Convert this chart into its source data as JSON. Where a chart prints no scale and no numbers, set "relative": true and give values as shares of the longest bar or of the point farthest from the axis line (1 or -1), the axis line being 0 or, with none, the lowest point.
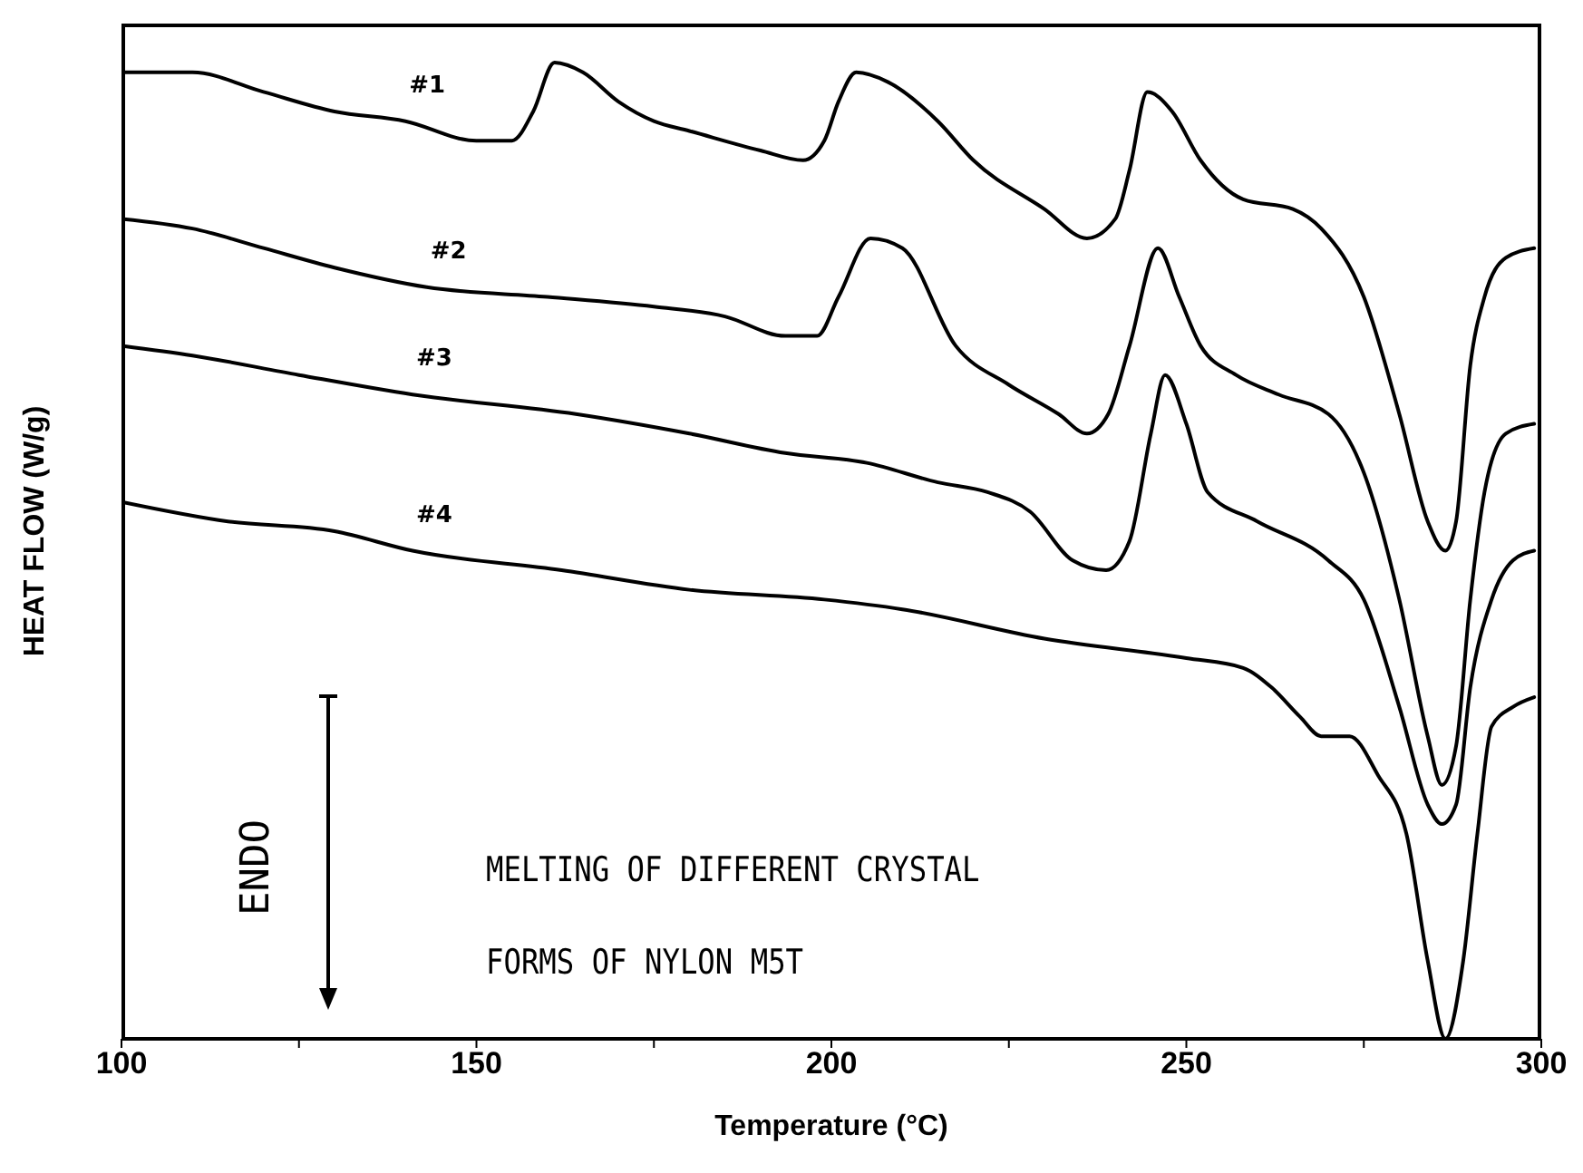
{
  "chart_data": {
    "type": "line",
    "xlabel": "Temperature (°C)",
    "ylabel": "HEAT FLOW (W/g)",
    "relative": true,
    "xlim": [
      100,
      300
    ],
    "xticks": [
      100,
      {
        "value": 125,
        "label": null
      },
      150,
      {
        "value": 175,
        "label": null
      },
      200,
      {
        "value": 225,
        "label": null
      },
      250,
      {
        "value": 275,
        "label": null
      },
      300
    ],
    "grid": false,
    "legend": false,
    "marker": "none",
    "line_style": "solid",
    "annotations": [
      "ENDO",
      "MELTING OF DIFFERENT CRYSTAL",
      "FORMS OF NYLON M5T"
    ],
    "series": [
      {
        "name": "#1",
        "color": "#000000",
        "x": [
          100,
          110,
          120,
          130,
          140,
          150,
          155,
          158,
          161,
          165,
          170,
          175,
          180,
          190,
          196,
          199,
          201,
          203.5,
          208,
          215,
          220,
          230,
          236,
          240,
          242,
          244.5,
          248,
          252,
          258,
          265,
          269,
          275,
          280,
          284,
          286.5,
          288,
          290,
          292,
          295,
          299
        ],
        "values": [
          0.99,
          0.99,
          0.97,
          0.95,
          0.94,
          0.92,
          0.92,
          0.95,
          1.0,
          0.99,
          0.96,
          0.94,
          0.93,
          0.91,
          0.9,
          0.92,
          0.96,
          0.99,
          0.98,
          0.94,
          0.9,
          0.85,
          0.82,
          0.84,
          0.89,
          0.97,
          0.95,
          0.9,
          0.86,
          0.85,
          0.83,
          0.76,
          0.64,
          0.53,
          0.5,
          0.53,
          0.69,
          0.76,
          0.8,
          0.81
        ]
      },
      {
        "name": "#2",
        "color": "#000000",
        "x": [
          100,
          110,
          120,
          130,
          143,
          160,
          175,
          185,
          193.5,
          198,
          201,
          205.5,
          210,
          217.5,
          225,
          232,
          236,
          239,
          242,
          246,
          249,
          252,
          257,
          263,
          270,
          275,
          280,
          284,
          286,
          288,
          290,
          292,
          295,
          299
        ],
        "values": [
          0.84,
          0.83,
          0.81,
          0.79,
          0.77,
          0.76,
          0.75,
          0.74,
          0.72,
          0.72,
          0.76,
          0.82,
          0.81,
          0.71,
          0.67,
          0.64,
          0.62,
          0.64,
          0.71,
          0.81,
          0.76,
          0.71,
          0.68,
          0.66,
          0.64,
          0.58,
          0.45,
          0.31,
          0.26,
          0.3,
          0.45,
          0.56,
          0.62,
          0.63
        ]
      },
      {
        "name": "#3",
        "color": "#000000",
        "x": [
          100,
          110,
          125,
          141,
          164,
          180,
          193.5,
          205,
          215,
          222,
          228,
          234,
          238.7,
          242,
          245,
          247,
          250,
          253,
          260,
          270,
          275,
          280,
          284,
          286,
          288,
          290,
          293,
          296,
          299
        ],
        "values": [
          0.71,
          0.7,
          0.68,
          0.66,
          0.64,
          0.62,
          0.6,
          0.59,
          0.57,
          0.56,
          0.54,
          0.49,
          0.48,
          0.51,
          0.62,
          0.68,
          0.63,
          0.56,
          0.53,
          0.49,
          0.45,
          0.34,
          0.24,
          0.22,
          0.24,
          0.36,
          0.45,
          0.49,
          0.5
        ]
      },
      {
        "name": "#4",
        "color": "#000000",
        "x": [
          100,
          115,
          130,
          141,
          162,
          180,
          199,
          210,
          230,
          250,
          258,
          262,
          266,
          269,
          273,
          277,
          281,
          284,
          286.5,
          289,
          291,
          293,
          296,
          299
        ],
        "values": [
          0.55,
          0.53,
          0.52,
          0.5,
          0.48,
          0.46,
          0.45,
          0.44,
          0.41,
          0.39,
          0.38,
          0.36,
          0.33,
          0.31,
          0.31,
          0.27,
          0.21,
          0.08,
          0.0,
          0.08,
          0.21,
          0.32,
          0.34,
          0.35
        ]
      }
    ]
  }
}
